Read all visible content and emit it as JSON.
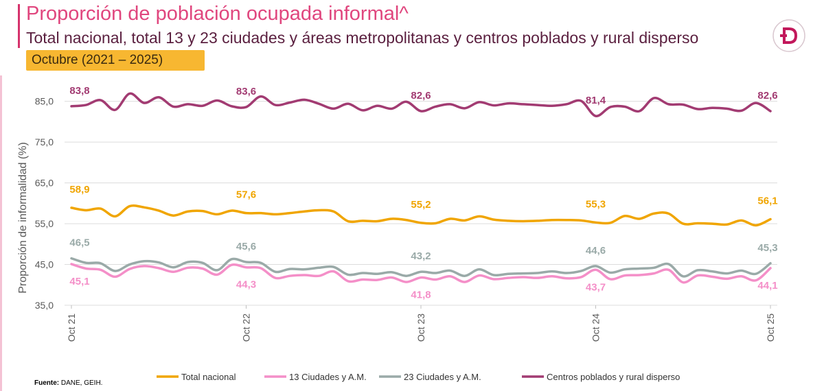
{
  "header": {
    "title": "Proporción de población ocupada informal^",
    "subtitle": "Total nacional, total 13 y 23 ciudades y áreas metropolitanas y centros poblados y rural disperso",
    "period": "Octubre (2021 – 2025)"
  },
  "logo": {
    "icon": "dane-d-logo-icon",
    "color": "#c2185b"
  },
  "footnote": {
    "label": "Fuente:",
    "text": "DANE, GEIH."
  },
  "colors": {
    "total": "#f0a500",
    "c13": "#f48fc8",
    "c23": "#9aaaa8",
    "rural": "#a23b72",
    "grid": "#dcdcdc",
    "axis_text": "#595959"
  },
  "chart_data": {
    "type": "line",
    "ylabel": "Proporción de informalidad (%)",
    "ylim": [
      35,
      90
    ],
    "yticks": [
      "35,0",
      "45,0",
      "55,0",
      "65,0",
      "75,0",
      "85,0"
    ],
    "ytick_values": [
      35,
      45,
      55,
      65,
      75,
      85
    ],
    "xticks": [
      "Oct 21",
      "Oct 22",
      "Oct 23",
      "Oct 24",
      "Oct 25"
    ],
    "xtick_index": [
      0,
      12,
      24,
      36,
      48
    ],
    "grid": "horizontal",
    "legend_position": "bottom",
    "series": [
      {
        "key": "total",
        "name": "Total nacional",
        "values": [
          58.9,
          58.3,
          58.7,
          56.8,
          59.3,
          59.0,
          58.2,
          57.0,
          58.0,
          58.1,
          57.3,
          58.2,
          57.6,
          57.6,
          57.3,
          57.6,
          58.0,
          58.3,
          58.0,
          55.6,
          55.7,
          55.6,
          56.2,
          55.9,
          55.2,
          55.1,
          56.2,
          55.8,
          56.8,
          56.0,
          55.7,
          55.6,
          55.7,
          55.9,
          55.9,
          55.8,
          55.3,
          55.2,
          56.9,
          56.2,
          57.5,
          57.5,
          55.0,
          55.1,
          55.0,
          54.8,
          55.8,
          54.6,
          56.1
        ],
        "labels": [
          {
            "i": 0,
            "text": "58,9"
          },
          {
            "i": 12,
            "text": "57,6"
          },
          {
            "i": 24,
            "text": "55,2"
          },
          {
            "i": 36,
            "text": "55,3"
          },
          {
            "i": 48,
            "text": "56,1"
          }
        ]
      },
      {
        "key": "c13",
        "name": "13 Ciudades y A.M.",
        "values": [
          45.1,
          44.0,
          43.7,
          42.0,
          43.9,
          44.6,
          44.1,
          43.2,
          44.2,
          44.0,
          42.5,
          44.9,
          44.3,
          44.1,
          41.7,
          42.2,
          42.4,
          42.2,
          43.3,
          40.9,
          41.3,
          41.2,
          41.8,
          40.7,
          41.8,
          41.3,
          42.1,
          40.7,
          42.3,
          41.4,
          41.7,
          41.9,
          41.7,
          42.1,
          41.6,
          41.9,
          43.7,
          41.4,
          42.3,
          42.4,
          42.8,
          43.7,
          40.6,
          42.3,
          42.0,
          41.5,
          42.1,
          41.1,
          44.1
        ],
        "labels": [
          {
            "i": 0,
            "text": "45,1"
          },
          {
            "i": 12,
            "text": "44,3"
          },
          {
            "i": 24,
            "text": "41,8"
          },
          {
            "i": 36,
            "text": "43,7"
          },
          {
            "i": 48,
            "text": "44,1"
          }
        ]
      },
      {
        "key": "c23",
        "name": "23 Ciudades y A.M.",
        "values": [
          46.5,
          45.4,
          45.3,
          43.4,
          45.0,
          45.8,
          45.5,
          44.3,
          45.6,
          45.4,
          43.6,
          46.3,
          45.6,
          45.4,
          43.2,
          43.9,
          43.8,
          44.2,
          44.4,
          42.5,
          42.9,
          42.7,
          43.1,
          42.2,
          43.2,
          42.9,
          43.5,
          42.2,
          43.8,
          42.4,
          42.7,
          42.8,
          42.9,
          43.3,
          42.9,
          43.4,
          44.6,
          43.0,
          43.8,
          44.0,
          44.2,
          45.1,
          42.1,
          43.6,
          43.3,
          42.8,
          43.5,
          42.7,
          45.3
        ],
        "labels": [
          {
            "i": 0,
            "text": "46,5"
          },
          {
            "i": 12,
            "text": "45,6"
          },
          {
            "i": 24,
            "text": "43,2"
          },
          {
            "i": 36,
            "text": "44,6"
          },
          {
            "i": 48,
            "text": "45,3"
          }
        ]
      },
      {
        "key": "rural",
        "name": "Centros poblados y rural disperso",
        "values": [
          83.8,
          84.1,
          85.3,
          82.9,
          86.9,
          84.6,
          86.0,
          83.7,
          84.3,
          83.9,
          85.2,
          83.8,
          83.6,
          86.2,
          84.1,
          84.7,
          85.4,
          84.4,
          83.2,
          84.4,
          82.8,
          83.9,
          83.2,
          84.9,
          82.6,
          83.7,
          84.3,
          83.3,
          84.8,
          84.0,
          84.5,
          84.3,
          84.1,
          83.9,
          84.3,
          85.1,
          81.4,
          83.6,
          83.7,
          82.6,
          85.8,
          84.3,
          84.2,
          83.1,
          83.4,
          83.2,
          82.7,
          84.6,
          82.6
        ],
        "labels": [
          {
            "i": 0,
            "text": "83,8"
          },
          {
            "i": 12,
            "text": "83,6"
          },
          {
            "i": 24,
            "text": "82,6"
          },
          {
            "i": 36,
            "text": "81,4"
          },
          {
            "i": 48,
            "text": "82,6"
          }
        ]
      }
    ]
  }
}
